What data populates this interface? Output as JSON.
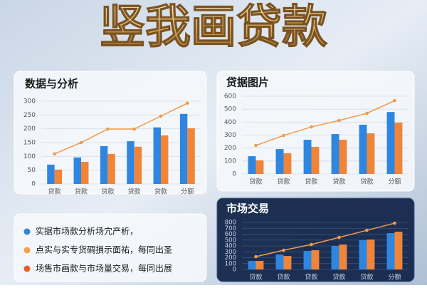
{
  "page_title": "竖我画贷款",
  "chart_data": [
    {
      "type": "bar",
      "title": "数据与分析",
      "background": "#f4f7fb",
      "categories": [
        "贷款",
        "贷款",
        "贷款",
        "贷款",
        "贷款",
        "分额"
      ],
      "ylim": [
        0,
        300
      ],
      "yticks": [
        0,
        50,
        100,
        150,
        200,
        250,
        300
      ],
      "series": [
        {
          "type": "bar",
          "color": "#2f86e0",
          "values": [
            70,
            96,
            137,
            155,
            205,
            254
          ]
        },
        {
          "type": "bar",
          "color": "#f0853a",
          "values": [
            52,
            80,
            109,
            135,
            176,
            202
          ]
        },
        {
          "type": "line",
          "color": "#f29a4a",
          "values": [
            109,
            150,
            199,
            199,
            246,
            293
          ]
        }
      ]
    },
    {
      "type": "bar",
      "title": "贷据图片",
      "background": "#f4f7fb",
      "categories": [
        "贷款",
        "贷款",
        "贷款",
        "贷款",
        "贷款",
        "分额"
      ],
      "ylim": [
        0,
        600
      ],
      "yticks": [
        0,
        100,
        200,
        300,
        400,
        500,
        600
      ],
      "series": [
        {
          "type": "bar",
          "color": "#2f86e0",
          "values": [
            137,
            192,
            264,
            308,
            380,
            478
          ]
        },
        {
          "type": "bar",
          "color": "#f0853a",
          "values": [
            105,
            160,
            209,
            264,
            314,
            396
          ]
        },
        {
          "type": "line",
          "color": "#f29a4a",
          "values": [
            220,
            297,
            363,
            413,
            468,
            566
          ]
        }
      ]
    },
    {
      "type": "bar",
      "title": "市场交易",
      "background": "#13264a",
      "categories": [
        "贷款",
        "贷款",
        "贷款",
        "贷款",
        "贷款",
        "分额"
      ],
      "ylim": [
        0,
        800
      ],
      "yticks": [
        0,
        100,
        200,
        300,
        400,
        500,
        600,
        700,
        800
      ],
      "series": [
        {
          "type": "bar",
          "color": "#2f86e0",
          "values": [
            145,
            254,
            315,
            400,
            497,
            618
          ]
        },
        {
          "type": "bar",
          "color": "#f0853a",
          "values": [
            145,
            230,
            327,
            424,
            509,
            642
          ]
        },
        {
          "type": "line",
          "color": "#f29a4a",
          "values": [
            218,
            327,
            424,
            545,
            666,
            787
          ]
        }
      ]
    }
  ],
  "notes": [
    {
      "text": "实据市场款分析场宂产析，",
      "color": "#2f86e0"
    },
    {
      "text": "点实与实专货碉損示面祐，每同出圣",
      "color": "#f5a04a"
    },
    {
      "text": "场售市画款与市场量交易，每同出展",
      "color": "#e8602c"
    }
  ]
}
